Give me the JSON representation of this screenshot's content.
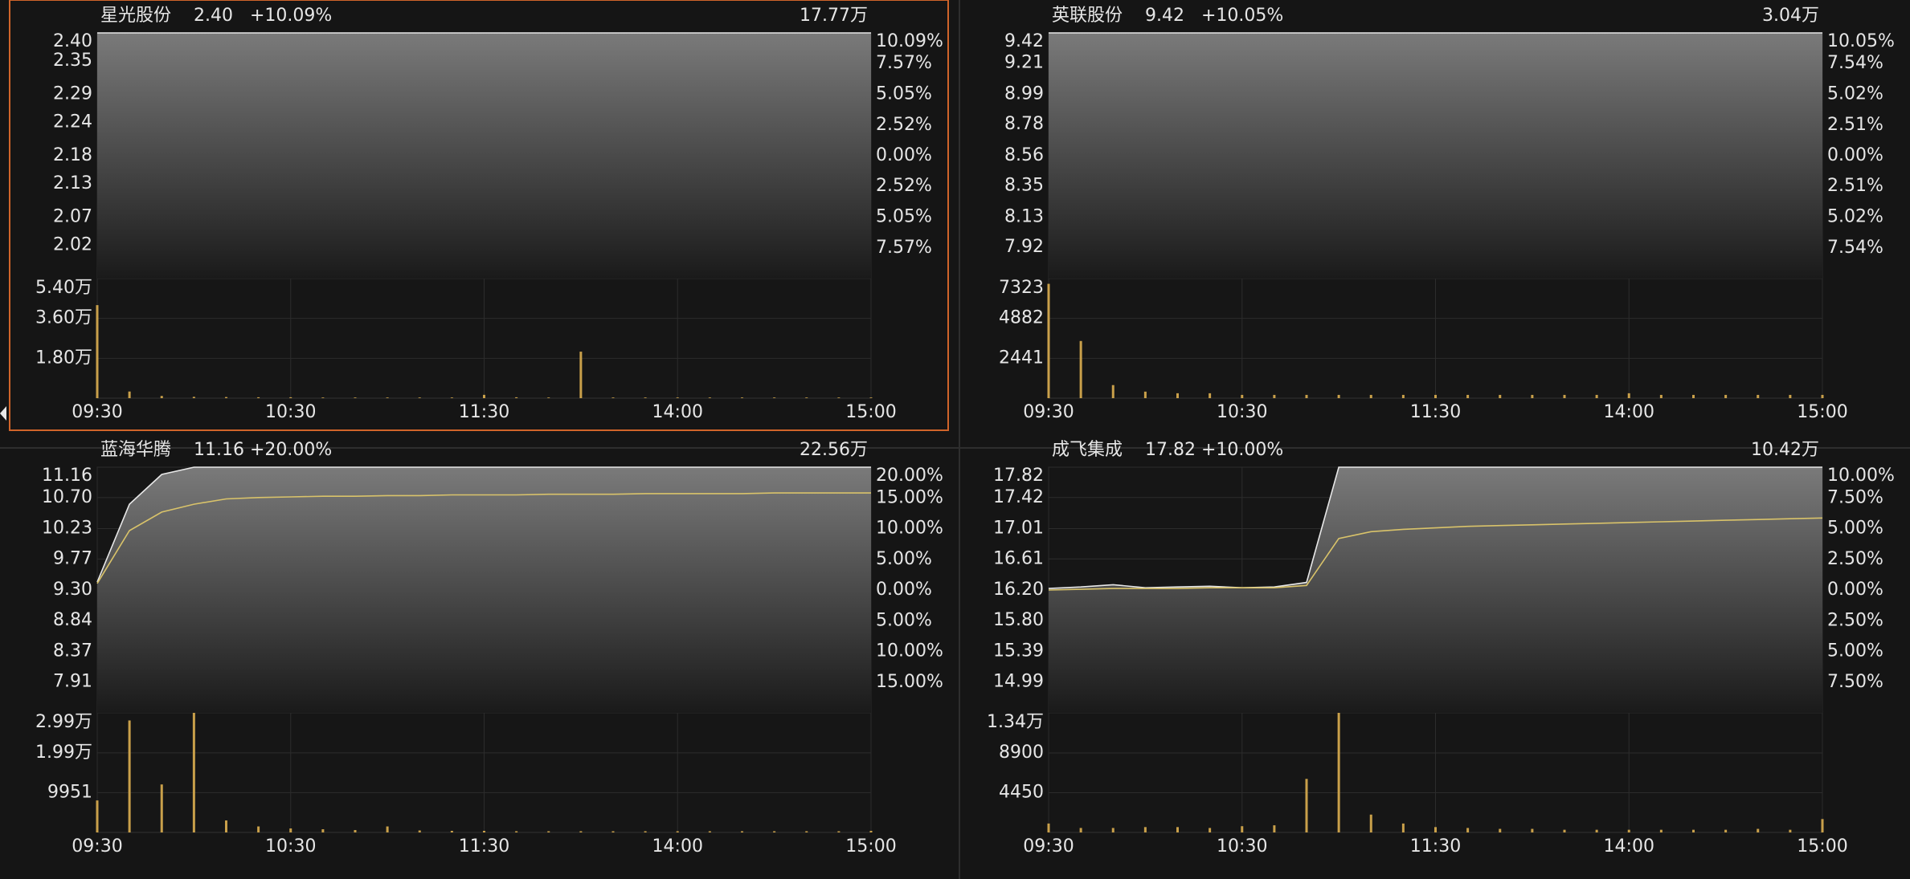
{
  "chart_data": [
    {
      "type": "line",
      "title": "星光股份",
      "last": "2.40",
      "change": "+10.09%",
      "turnover": "17.77万",
      "categories": [
        "09:30",
        null,
        null,
        null,
        null,
        null,
        "10:30",
        null,
        null,
        null,
        null,
        null,
        "11:30",
        null,
        null,
        null,
        null,
        null,
        "14:00",
        null,
        null,
        null,
        null,
        null,
        "15:00"
      ],
      "series": [
        {
          "color": "#e8e8e8",
          "values": [
            2.4,
            2.4,
            2.4,
            2.4,
            2.4,
            2.4,
            2.4,
            2.4,
            2.4,
            2.4,
            2.4,
            2.4,
            2.4,
            2.4,
            2.4,
            2.4,
            2.4,
            2.4,
            2.4,
            2.4,
            2.4,
            2.4,
            2.4,
            2.4,
            2.4
          ]
        }
      ],
      "ylim": [
        1.96,
        2.4
      ],
      "yticks": [
        {
          "value": 2.4,
          "label": "2.40"
        },
        {
          "value": 2.35,
          "label": "2.35"
        },
        {
          "value": 2.29,
          "label": "2.29"
        },
        {
          "value": 2.24,
          "label": "2.24"
        },
        {
          "value": 2.18,
          "label": "2.18"
        },
        {
          "value": 2.13,
          "label": "2.13"
        },
        {
          "value": 2.07,
          "label": "2.07"
        },
        {
          "value": 2.02,
          "label": "2.02"
        }
      ],
      "y2lim": [
        -10.09,
        10.09
      ],
      "y2ticks": [
        {
          "value": 10.09,
          "label": "10.09%"
        },
        {
          "value": 7.57,
          "label": "7.57%"
        },
        {
          "value": 5.05,
          "label": "5.05%"
        },
        {
          "value": 2.52,
          "label": "2.52%"
        },
        {
          "value": 0,
          "label": "0.00%"
        },
        {
          "value": -2.52,
          "label": "2.52%"
        },
        {
          "value": -5.05,
          "label": "5.05%"
        },
        {
          "value": -7.57,
          "label": "7.57%"
        }
      ],
      "volume": {
        "color": "#c9a04a",
        "values": [
          42000,
          3000,
          1000,
          600,
          500,
          400,
          400,
          300,
          300,
          300,
          300,
          300,
          1500,
          400,
          300,
          21000,
          300,
          300,
          300,
          300,
          300,
          300,
          300,
          300,
          300
        ],
        "ylim": [
          0,
          54000
        ],
        "yticks": [
          {
            "value": 54000,
            "label": "5.40万"
          },
          {
            "value": 36000,
            "label": "3.60万"
          },
          {
            "value": 18000,
            "label": "1.80万"
          }
        ]
      },
      "grid": true,
      "selected": true
    },
    {
      "type": "line",
      "title": "英联股份",
      "last": "9.42",
      "change": "+10.05%",
      "turnover": "3.04万",
      "categories": [
        "09:30",
        null,
        null,
        null,
        null,
        null,
        "10:30",
        null,
        null,
        null,
        null,
        null,
        "11:30",
        null,
        null,
        null,
        null,
        null,
        "14:00",
        null,
        null,
        null,
        null,
        null,
        "15:00"
      ],
      "series": [
        {
          "color": "#e8e8e8",
          "values": [
            9.42,
            9.42,
            9.42,
            9.42,
            9.42,
            9.42,
            9.42,
            9.42,
            9.42,
            9.42,
            9.42,
            9.42,
            9.42,
            9.42,
            9.42,
            9.42,
            9.42,
            9.42,
            9.42,
            9.42,
            9.42,
            9.42,
            9.42,
            9.42,
            9.42
          ]
        }
      ],
      "ylim": [
        7.7,
        9.42
      ],
      "yticks": [
        {
          "value": 9.42,
          "label": "9.42"
        },
        {
          "value": 9.21,
          "label": "9.21"
        },
        8.99,
        8.78,
        8.56,
        8.35,
        8.13,
        7.92
      ],
      "y2lim": [
        -10.05,
        10.05
      ],
      "y2ticks": [
        {
          "value": 10.05,
          "label": "10.05%"
        },
        {
          "value": 7.54,
          "label": "7.54%"
        },
        {
          "value": 5.02,
          "label": "5.02%"
        },
        {
          "value": 2.51,
          "label": "2.51%"
        },
        {
          "value": 0,
          "label": "0.00%"
        },
        {
          "value": -2.51,
          "label": "2.51%"
        },
        {
          "value": -5.02,
          "label": "5.02%"
        },
        {
          "value": -7.54,
          "label": "7.54%"
        }
      ],
      "volume": {
        "color": "#c9a04a",
        "values": [
          7000,
          3500,
          800,
          400,
          300,
          300,
          200,
          200,
          200,
          200,
          200,
          200,
          200,
          200,
          200,
          200,
          200,
          200,
          300,
          200,
          200,
          200,
          200,
          200,
          200
        ],
        "ylim": [
          0,
          7323
        ],
        "yticks": [
          7323,
          4882,
          2441
        ]
      },
      "grid": true,
      "selected": false
    },
    {
      "type": "line",
      "title": "蓝海华腾",
      "last": "11.16",
      "change": "+20.00%",
      "turnover": "22.56万",
      "categories": [
        "09:30",
        null,
        null,
        null,
        null,
        null,
        "10:30",
        null,
        null,
        null,
        null,
        null,
        "11:30",
        null,
        null,
        null,
        null,
        null,
        "14:00",
        null,
        null,
        null,
        null,
        null,
        "15:00"
      ],
      "series": [
        {
          "color": "#e8e8e8",
          "values": [
            9.42,
            10.6,
            11.05,
            11.16,
            11.16,
            11.16,
            11.16,
            11.16,
            11.16,
            11.16,
            11.16,
            11.16,
            11.16,
            11.16,
            11.16,
            11.16,
            11.16,
            11.16,
            11.16,
            11.16,
            11.16,
            11.16,
            11.16,
            11.16,
            11.16
          ]
        },
        {
          "color": "#d9c36a",
          "values": [
            9.4,
            10.2,
            10.48,
            10.6,
            10.68,
            10.7,
            10.71,
            10.72,
            10.72,
            10.73,
            10.73,
            10.74,
            10.74,
            10.74,
            10.75,
            10.75,
            10.75,
            10.76,
            10.76,
            10.76,
            10.76,
            10.77,
            10.77,
            10.77,
            10.77
          ]
        }
      ],
      "ylim": [
        7.44,
        11.16
      ],
      "yticks": [
        {
          "value": 11.16,
          "label": "11.16"
        },
        {
          "value": 10.7,
          "label": "10.70"
        },
        10.23,
        9.77,
        {
          "value": 9.3,
          "label": "9.30"
        },
        8.84,
        8.37,
        7.91
      ],
      "y2lim": [
        -20,
        20
      ],
      "y2ticks": [
        {
          "value": 20,
          "label": "20.00%"
        },
        {
          "value": 15,
          "label": "15.00%"
        },
        {
          "value": 10,
          "label": "10.00%"
        },
        {
          "value": 5,
          "label": "5.00%"
        },
        {
          "value": 0,
          "label": "0.00%"
        },
        {
          "value": -5,
          "label": "5.00%"
        },
        {
          "value": -10,
          "label": "10.00%"
        },
        {
          "value": -15,
          "label": "15.00%"
        }
      ],
      "volume": {
        "color": "#c9a04a",
        "values": [
          8000,
          28000,
          12000,
          29900,
          3000,
          1500,
          1000,
          800,
          600,
          1500,
          500,
          400,
          400,
          300,
          300,
          300,
          300,
          300,
          300,
          300,
          300,
          300,
          300,
          300,
          400
        ],
        "ylim": [
          0,
          29900
        ],
        "yticks": [
          {
            "value": 29900,
            "label": "2.99万"
          },
          {
            "value": 19900,
            "label": "1.99万"
          },
          9951
        ]
      },
      "grid": true,
      "selected": false
    },
    {
      "type": "line",
      "title": "成飞集成",
      "last": "17.82",
      "change": "+10.00%",
      "turnover": "10.42万",
      "categories": [
        "09:30",
        null,
        null,
        null,
        null,
        null,
        "10:30",
        null,
        null,
        null,
        null,
        null,
        "11:30",
        null,
        null,
        null,
        null,
        null,
        "14:00",
        null,
        null,
        null,
        null,
        null,
        "15:00"
      ],
      "series": [
        {
          "color": "#e8e8e8",
          "values": [
            16.22,
            16.24,
            16.27,
            16.23,
            16.24,
            16.25,
            16.23,
            16.24,
            16.3,
            17.82,
            17.82,
            17.82,
            17.82,
            17.82,
            17.82,
            17.82,
            17.82,
            17.82,
            17.82,
            17.82,
            17.82,
            17.82,
            17.82,
            17.82,
            17.82
          ]
        },
        {
          "color": "#d9c36a",
          "values": [
            16.2,
            16.21,
            16.22,
            16.22,
            16.22,
            16.23,
            16.23,
            16.23,
            16.26,
            16.88,
            16.97,
            17.0,
            17.02,
            17.04,
            17.05,
            17.06,
            17.07,
            17.08,
            17.09,
            17.1,
            17.11,
            17.12,
            17.13,
            17.14,
            17.15
          ]
        }
      ],
      "ylim": [
        14.58,
        17.82
      ],
      "yticks": [
        17.82,
        17.42,
        17.01,
        16.61,
        {
          "value": 16.2,
          "label": "16.20"
        },
        {
          "value": 15.8,
          "label": "15.80"
        },
        15.39,
        14.99
      ],
      "y2lim": [
        -10,
        10
      ],
      "y2ticks": [
        {
          "value": 10,
          "label": "10.00%"
        },
        {
          "value": 7.5,
          "label": "7.50%"
        },
        {
          "value": 5,
          "label": "5.00%"
        },
        {
          "value": 2.5,
          "label": "2.50%"
        },
        {
          "value": 0,
          "label": "0.00%"
        },
        {
          "value": -2.5,
          "label": "2.50%"
        },
        {
          "value": -5,
          "label": "5.00%"
        },
        {
          "value": -7.5,
          "label": "7.50%"
        }
      ],
      "volume": {
        "color": "#c9a04a",
        "values": [
          1000,
          500,
          500,
          600,
          600,
          500,
          700,
          800,
          6000,
          13400,
          2000,
          1000,
          600,
          500,
          400,
          400,
          300,
          300,
          300,
          300,
          300,
          300,
          400,
          300,
          1500
        ],
        "ylim": [
          0,
          13400
        ],
        "yticks": [
          {
            "value": 13400,
            "label": "1.34万"
          },
          8900,
          4450
        ]
      },
      "grid": true,
      "selected": false
    }
  ]
}
